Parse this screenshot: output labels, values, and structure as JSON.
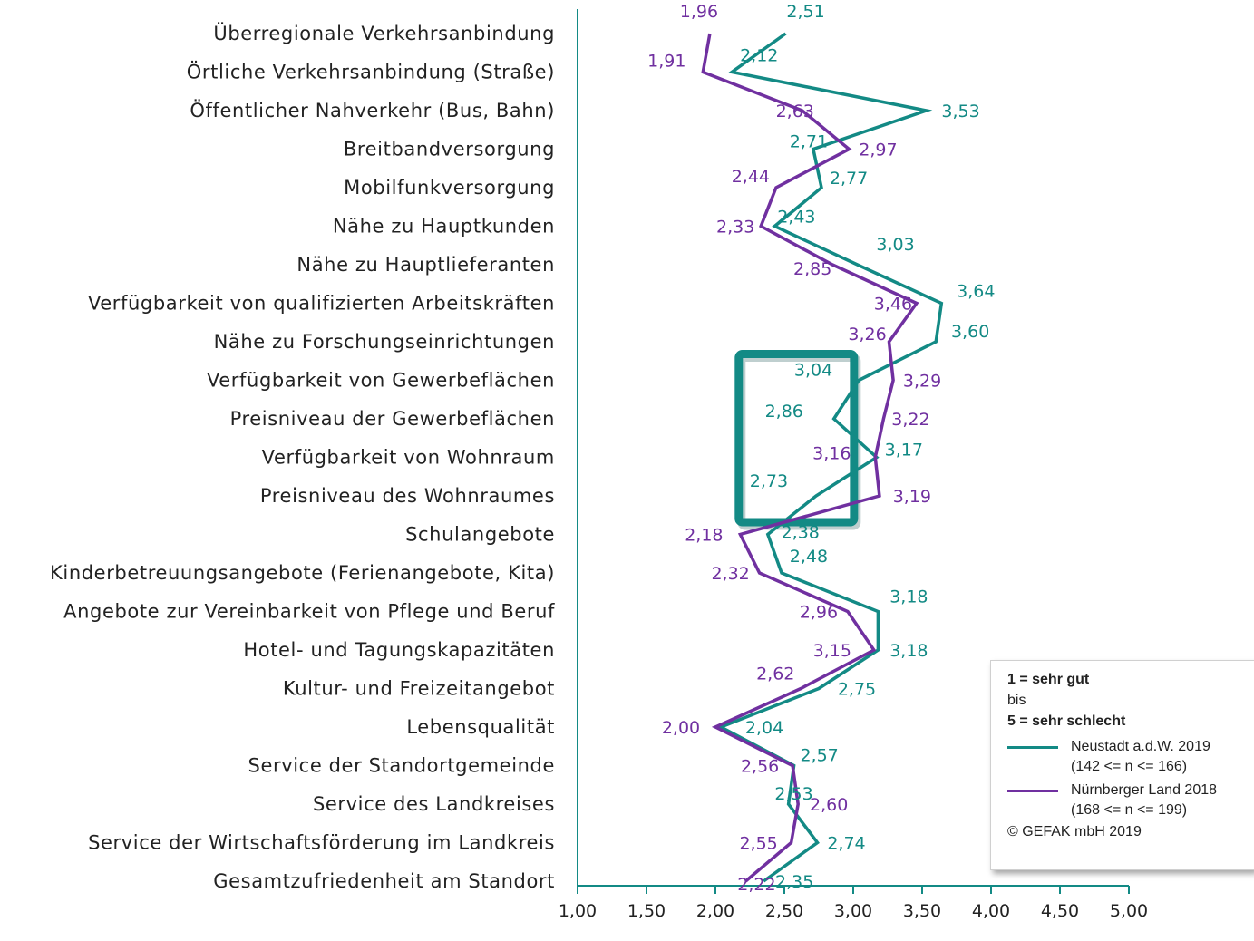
{
  "chart_data": {
    "type": "line",
    "orientation": "horizontal",
    "categories": [
      "Überregionale Verkehrsanbindung",
      "Örtliche Verkehrsanbindung (Straße)",
      "Öffentlicher Nahverkehr (Bus, Bahn)",
      "Breitbandversorgung",
      "Mobilfunkversorgung",
      "Nähe zu Hauptkunden",
      "Nähe zu Hauptlieferanten",
      "Verfügbarkeit von qualifizierten Arbeitskräften",
      "Nähe zu Forschungseinrichtungen",
      "Verfügbarkeit von Gewerbeflächen",
      "Preisniveau der Gewerbeflächen",
      "Verfügbarkeit von Wohnraum",
      "Preisniveau des Wohnraumes",
      "Schulangebote",
      "Kinderbetreuungsangebote (Ferienangebote, Kita)",
      "Angebote zur Vereinbarkeit von Pflege und Beruf",
      "Hotel- und Tagungskapazitäten",
      "Kultur- und Freizeitangebot",
      "Lebensqualität",
      "Service der Standortgemeinde",
      "Service des Landkreises",
      "Service der Wirtschaftsförderung im Landkreis",
      "Gesamtzufriedenheit am Standort"
    ],
    "series": [
      {
        "name": "Neustadt a.d.W. 2019",
        "color": "#138a85",
        "values": [
          2.51,
          2.12,
          3.53,
          2.71,
          2.77,
          2.43,
          3.03,
          3.64,
          3.6,
          3.04,
          2.86,
          3.17,
          2.73,
          2.38,
          2.48,
          3.18,
          3.18,
          2.75,
          2.04,
          2.57,
          2.53,
          2.74,
          2.35
        ],
        "labels": [
          "2,51",
          "2,12",
          "3,53",
          "2,71",
          "2,77",
          "2,43",
          "3,03",
          "3,64",
          "3,60",
          "3,04",
          "2,86",
          "3,17",
          "2,73",
          "2,38",
          "2,48",
          "3,18",
          "3,18",
          "2,75",
          "2,04",
          "2,57",
          "2,53",
          "2,74",
          "2,35"
        ]
      },
      {
        "name": "Nürnberger Land 2018",
        "color": "#7030a0",
        "values": [
          1.96,
          1.91,
          2.63,
          2.97,
          2.44,
          2.33,
          2.85,
          3.46,
          3.26,
          3.29,
          3.22,
          3.16,
          3.19,
          2.18,
          2.32,
          2.96,
          3.15,
          2.62,
          2.0,
          2.56,
          2.6,
          2.55,
          2.22
        ],
        "labels": [
          "1,96",
          "1,91",
          "2,63",
          "2,97",
          "2,44",
          "2,33",
          "2,85",
          "3,46",
          "3,26",
          "3,29",
          "3,22",
          "3,16",
          "3,19",
          "2,18",
          "2,32",
          "2,96",
          "3,15",
          "2,62",
          "2,00",
          "2,56",
          "2,60",
          "2,55",
          "2,22"
        ]
      }
    ],
    "xlim": [
      1.0,
      5.0
    ],
    "xticks": [
      1.0,
      1.5,
      2.0,
      2.5,
      3.0,
      3.5,
      4.0,
      4.5,
      5.0
    ],
    "xtick_labels": [
      "1,00",
      "1,50",
      "2,00",
      "2,50",
      "3,00",
      "3,50",
      "4,00",
      "4,50",
      "5,00"
    ],
    "axis_color": "#138a85",
    "highlight": {
      "from_category": "Verfügbarkeit von Gewerbeflächen",
      "to_category": "Preisniveau des Wohnraumes",
      "color": "#138a85"
    },
    "legend_position": "bottom-right"
  },
  "legend": {
    "scale_top": "1 = sehr gut",
    "scale_mid": "bis",
    "scale_bottom": "5 = sehr schlecht",
    "entries": [
      {
        "line1": "Neustadt a.d.W. 2019",
        "line2": "(142 <= n <= 166)",
        "color": "#138a85"
      },
      {
        "line1": "Nürnberger Land 2018",
        "line2": "(168 <= n <= 199)",
        "color": "#7030a0"
      }
    ],
    "copyright": "© GEFAK mbH 2019"
  }
}
